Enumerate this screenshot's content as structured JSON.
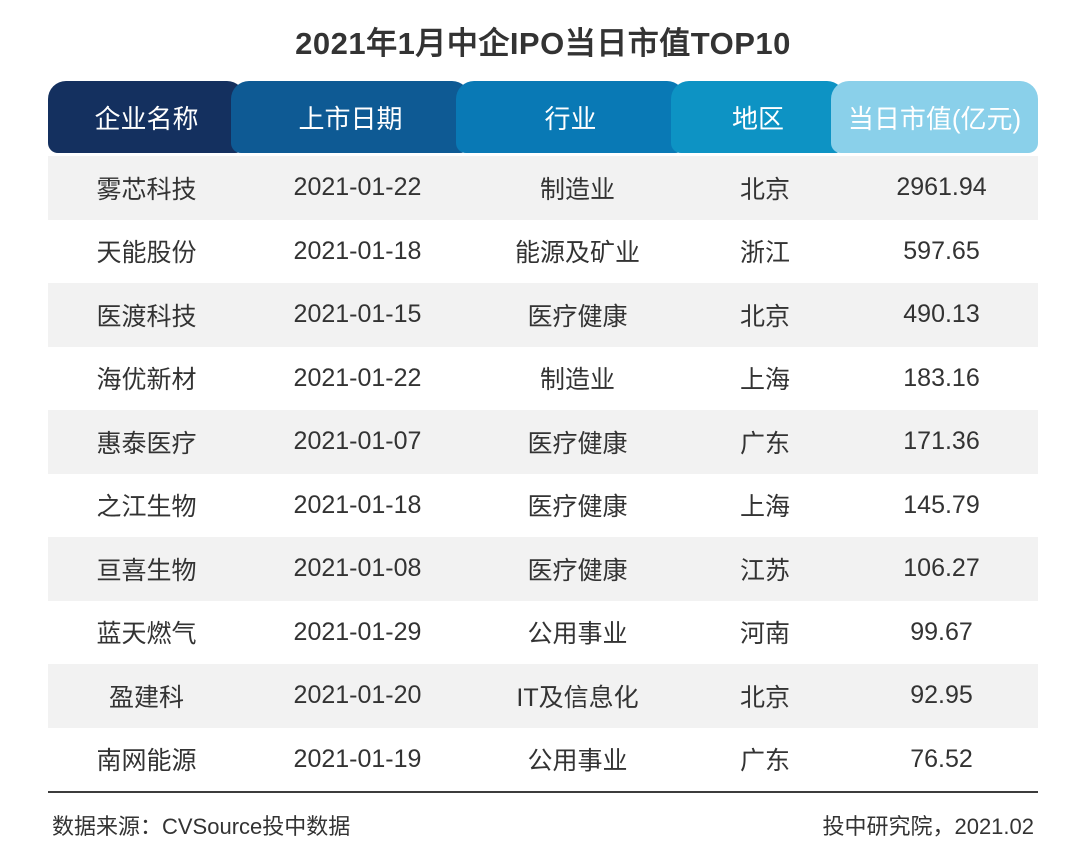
{
  "title": "2021年1月中企IPO当日市值TOP10",
  "chart_data": {
    "type": "table",
    "title": "2021年1月中企IPO当日市值TOP10",
    "columns": [
      "企业名称",
      "上市日期",
      "行业",
      "地区",
      "当日市值(亿元)"
    ],
    "rows": [
      [
        "雾芯科技",
        "2021-01-22",
        "制造业",
        "北京",
        "2961.94"
      ],
      [
        "天能股份",
        "2021-01-18",
        "能源及矿业",
        "浙江",
        "597.65"
      ],
      [
        "医渡科技",
        "2021-01-15",
        "医疗健康",
        "北京",
        "490.13"
      ],
      [
        "海优新材",
        "2021-01-22",
        "制造业",
        "上海",
        "183.16"
      ],
      [
        "惠泰医疗",
        "2021-01-07",
        "医疗健康",
        "广东",
        "171.36"
      ],
      [
        "之江生物",
        "2021-01-18",
        "医疗健康",
        "上海",
        "145.79"
      ],
      [
        "亘喜生物",
        "2021-01-08",
        "医疗健康",
        "江苏",
        "106.27"
      ],
      [
        "蓝天燃气",
        "2021-01-29",
        "公用事业",
        "河南",
        "99.67"
      ],
      [
        "盈建科",
        "2021-01-20",
        "IT及信息化",
        "北京",
        "92.95"
      ],
      [
        "南网能源",
        "2021-01-19",
        "公用事业",
        "广东",
        "76.52"
      ]
    ],
    "header_colors": [
      "#14305f",
      "#0e5a94",
      "#0979b5",
      "#0d93c4",
      "#8ad0ea"
    ],
    "stripe_color": "#f2f2f2",
    "header_text_color": "#ffffff",
    "body_text_color": "#333333"
  },
  "footer": {
    "source": "数据来源：CVSource投中数据",
    "credit": "投中研究院，2021.02"
  }
}
